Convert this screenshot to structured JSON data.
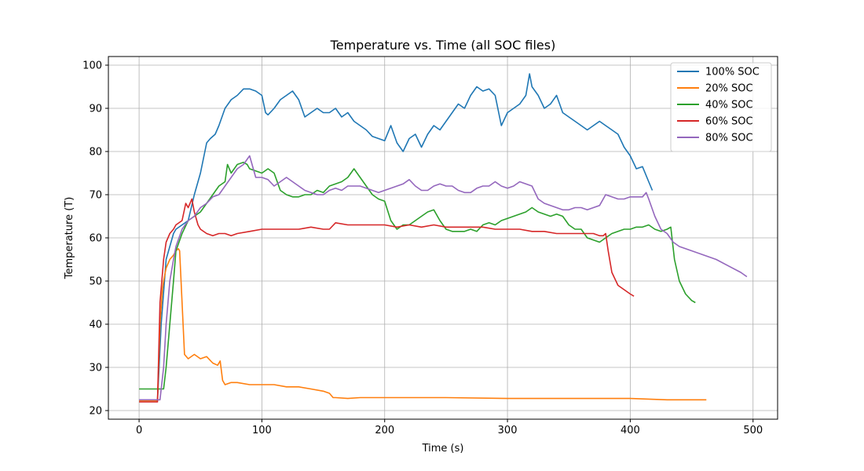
{
  "chart_data": {
    "type": "line",
    "title": "Temperature vs. Time (all SOC files)",
    "xlabel": "Time (s)",
    "ylabel": "Temperature (T)",
    "xlim": [
      -25,
      520
    ],
    "ylim": [
      18,
      102
    ],
    "xticks": [
      0,
      100,
      200,
      300,
      400,
      500
    ],
    "yticks": [
      20,
      30,
      40,
      50,
      60,
      70,
      80,
      90,
      100
    ],
    "grid": true,
    "legend_position": "upper right",
    "series": [
      {
        "name": "100% SOC",
        "color": "#1f77b4",
        "x": [
          0,
          15,
          18,
          22,
          25,
          28,
          30,
          35,
          40,
          45,
          50,
          55,
          58,
          62,
          65,
          70,
          75,
          80,
          85,
          90,
          95,
          100,
          103,
          105,
          110,
          115,
          120,
          125,
          130,
          135,
          140,
          145,
          150,
          155,
          160,
          165,
          170,
          175,
          180,
          185,
          190,
          195,
          200,
          205,
          210,
          215,
          220,
          225,
          230,
          235,
          240,
          245,
          250,
          255,
          260,
          265,
          270,
          275,
          280,
          285,
          290,
          295,
          300,
          305,
          310,
          315,
          318,
          320,
          325,
          330,
          335,
          340,
          345,
          350,
          355,
          360,
          365,
          370,
          375,
          380,
          385,
          390,
          395,
          400,
          405,
          410,
          415,
          418
        ],
        "y": [
          22.3,
          22.3,
          40,
          55,
          58,
          61,
          62,
          63,
          64,
          70,
          75,
          82,
          83,
          84,
          86,
          90,
          92,
          93,
          94.5,
          94.5,
          94,
          93,
          89,
          88.5,
          90,
          92,
          93,
          94,
          92,
          88,
          89,
          90,
          89,
          89,
          90,
          88,
          89,
          87,
          86,
          85,
          83.5,
          83,
          82.5,
          86,
          82,
          80,
          83,
          84,
          81,
          84,
          86,
          85,
          87,
          89,
          91,
          90,
          93,
          95,
          94,
          94.5,
          93,
          86,
          89,
          90,
          91,
          93,
          98,
          95,
          93,
          90,
          91,
          93,
          89,
          88,
          87,
          86,
          85,
          86,
          87,
          86,
          85,
          84,
          81,
          79,
          76,
          76.5,
          73,
          71
        ]
      },
      {
        "name": "20% SOC",
        "color": "#ff7f0e",
        "x": [
          0,
          15,
          17,
          19,
          20,
          22,
          25,
          28,
          30,
          32,
          33,
          35,
          37,
          40,
          45,
          50,
          55,
          60,
          64,
          66,
          68,
          70,
          75,
          80,
          90,
          100,
          110,
          120,
          130,
          140,
          150,
          155,
          158,
          160,
          170,
          180,
          200,
          220,
          250,
          300,
          350,
          400,
          430,
          462
        ],
        "y": [
          22.3,
          22.3,
          40,
          48,
          50,
          53,
          55,
          56,
          57,
          57.5,
          57,
          45,
          33,
          32,
          33,
          32,
          32.5,
          31,
          30.5,
          31.5,
          27,
          26,
          26.5,
          26.5,
          26,
          26,
          26,
          25.5,
          25.5,
          25,
          24.5,
          24,
          23,
          23,
          22.8,
          23,
          23,
          23,
          23,
          22.8,
          22.8,
          22.8,
          22.5,
          22.5
        ]
      },
      {
        "name": "40% SOC",
        "color": "#2ca02c",
        "x": [
          0,
          10,
          20,
          22,
          25,
          28,
          30,
          35,
          40,
          45,
          50,
          55,
          60,
          65,
          70,
          72,
          75,
          80,
          85,
          88,
          90,
          95,
          100,
          105,
          110,
          115,
          120,
          125,
          130,
          135,
          140,
          145,
          150,
          155,
          160,
          165,
          170,
          175,
          180,
          185,
          190,
          195,
          200,
          205,
          210,
          215,
          220,
          225,
          230,
          235,
          240,
          245,
          250,
          255,
          260,
          265,
          270,
          275,
          280,
          285,
          290,
          295,
          300,
          305,
          310,
          315,
          320,
          325,
          330,
          335,
          340,
          345,
          350,
          355,
          360,
          365,
          370,
          375,
          380,
          385,
          390,
          395,
          400,
          405,
          410,
          415,
          420,
          425,
          430,
          433,
          436,
          440,
          445,
          450,
          453
        ],
        "y": [
          25,
          25,
          25,
          30,
          40,
          50,
          57,
          61,
          64,
          65,
          66,
          68,
          70,
          72,
          73,
          77,
          75,
          77,
          77.5,
          77,
          76,
          75.5,
          75,
          76,
          75,
          71,
          70,
          69.5,
          69.5,
          70,
          70,
          71,
          70.5,
          72,
          72.5,
          73,
          74,
          76,
          74,
          72,
          70,
          69,
          68.5,
          64,
          62,
          63,
          63,
          64,
          65,
          66,
          66.5,
          64,
          62,
          61.5,
          61.5,
          61.5,
          62,
          61.5,
          63,
          63.5,
          63,
          64,
          64.5,
          65,
          65.5,
          66,
          67,
          66,
          65.5,
          65,
          65.5,
          65,
          63,
          62,
          62,
          60,
          59.5,
          59,
          60,
          61,
          61.5,
          62,
          62,
          62.5,
          62.5,
          63,
          62,
          61.5,
          62,
          62.5,
          55,
          50,
          47,
          45.5,
          45
        ]
      },
      {
        "name": "60% SOC",
        "color": "#d62728",
        "x": [
          0,
          15,
          17,
          20,
          22,
          25,
          28,
          30,
          35,
          38,
          40,
          43,
          45,
          48,
          50,
          55,
          60,
          65,
          70,
          75,
          80,
          90,
          100,
          110,
          120,
          130,
          140,
          150,
          155,
          160,
          170,
          180,
          190,
          200,
          210,
          220,
          230,
          240,
          250,
          260,
          270,
          280,
          290,
          300,
          310,
          320,
          330,
          340,
          350,
          360,
          370,
          375,
          378,
          380,
          382,
          385,
          390,
          395,
          400,
          403
        ],
        "y": [
          22,
          22,
          45,
          55,
          59,
          61,
          62,
          63,
          64,
          68,
          67,
          69,
          66,
          63,
          62,
          61,
          60.5,
          61,
          61,
          60.5,
          61,
          61.5,
          62,
          62,
          62,
          62,
          62.5,
          62,
          62,
          63.5,
          63,
          63,
          63,
          63,
          62.5,
          63,
          62.5,
          63,
          62.5,
          62.5,
          62.5,
          62.5,
          62,
          62,
          62,
          61.5,
          61.5,
          61,
          61,
          61,
          61,
          60.5,
          60.5,
          61,
          57,
          52,
          49,
          48,
          47,
          46.5
        ]
      },
      {
        "name": "80% SOC",
        "color": "#9467bd",
        "x": [
          0,
          10,
          17,
          20,
          22,
          25,
          28,
          30,
          35,
          40,
          45,
          50,
          55,
          60,
          65,
          70,
          75,
          80,
          85,
          90,
          95,
          100,
          105,
          110,
          115,
          120,
          125,
          130,
          135,
          140,
          145,
          150,
          155,
          160,
          165,
          170,
          175,
          180,
          185,
          190,
          195,
          200,
          205,
          210,
          215,
          220,
          225,
          230,
          235,
          240,
          245,
          250,
          255,
          260,
          265,
          270,
          275,
          280,
          285,
          290,
          295,
          300,
          305,
          310,
          315,
          320,
          325,
          330,
          335,
          340,
          345,
          350,
          355,
          360,
          365,
          370,
          375,
          380,
          385,
          390,
          395,
          400,
          405,
          410,
          413,
          415,
          420,
          425,
          430,
          435,
          440,
          450,
          460,
          470,
          480,
          490,
          495
        ],
        "y": [
          22.5,
          22.5,
          22.5,
          30,
          40,
          50,
          55,
          58,
          62,
          64,
          65,
          67,
          68,
          69.5,
          70,
          72,
          74,
          76,
          77,
          79,
          74,
          74,
          73.5,
          72,
          73,
          74,
          73,
          72,
          71,
          70.5,
          70,
          70,
          71,
          71.5,
          71,
          72,
          72,
          72,
          71.5,
          71,
          70.5,
          71,
          71.5,
          72,
          72.5,
          73.5,
          72,
          71,
          71,
          72,
          72.5,
          72,
          72,
          71,
          70.5,
          70.5,
          71.5,
          72,
          72,
          73,
          72,
          71.5,
          72,
          73,
          72.5,
          72,
          69,
          68,
          67.5,
          67,
          66.5,
          66.5,
          67,
          67,
          66.5,
          67,
          67.5,
          70,
          69.5,
          69,
          69,
          69.5,
          69.5,
          69.5,
          70.5,
          69,
          65,
          62,
          61,
          59,
          58,
          57,
          56,
          55,
          53.5,
          52,
          51
        ]
      }
    ]
  }
}
